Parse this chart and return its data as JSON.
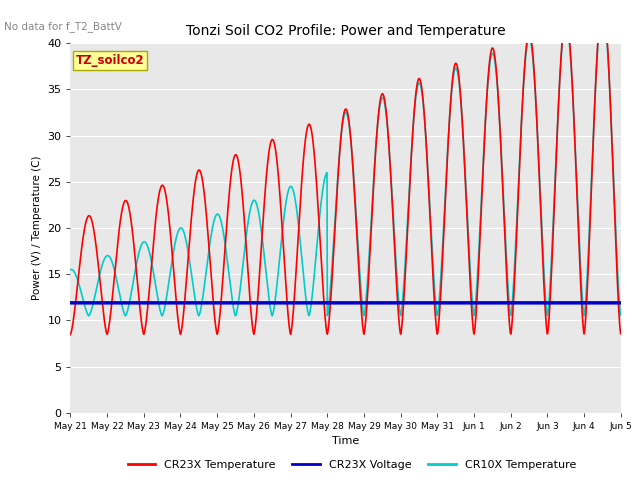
{
  "title": "Tonzi Soil CO2 Profile: Power and Temperature",
  "no_data_label": "No data for f_T2_BattV",
  "ylabel": "Power (V) / Temperature (C)",
  "xlabel": "Time",
  "ylim": [
    0,
    40
  ],
  "bg_color": "#e8e8e8",
  "x_tick_labels": [
    "May 21",
    "May 22",
    "May 23",
    "May 24",
    "May 25",
    "May 26",
    "May 27",
    "May 28",
    "May 29",
    "May 30",
    "May 31",
    "Jun 1",
    "Jun 2",
    "Jun 3",
    "Jun 4",
    "Jun 5"
  ],
  "legend_items": [
    {
      "label": "CR23X Temperature",
      "color": "#ff0000"
    },
    {
      "label": "CR23X Voltage",
      "color": "#0000cc"
    },
    {
      "label": "CR10X Temperature",
      "color": "#00cccc"
    }
  ],
  "legend_box_label": "TZ_soilco2",
  "legend_box_color": "#ffff99",
  "voltage_value": 11.9
}
